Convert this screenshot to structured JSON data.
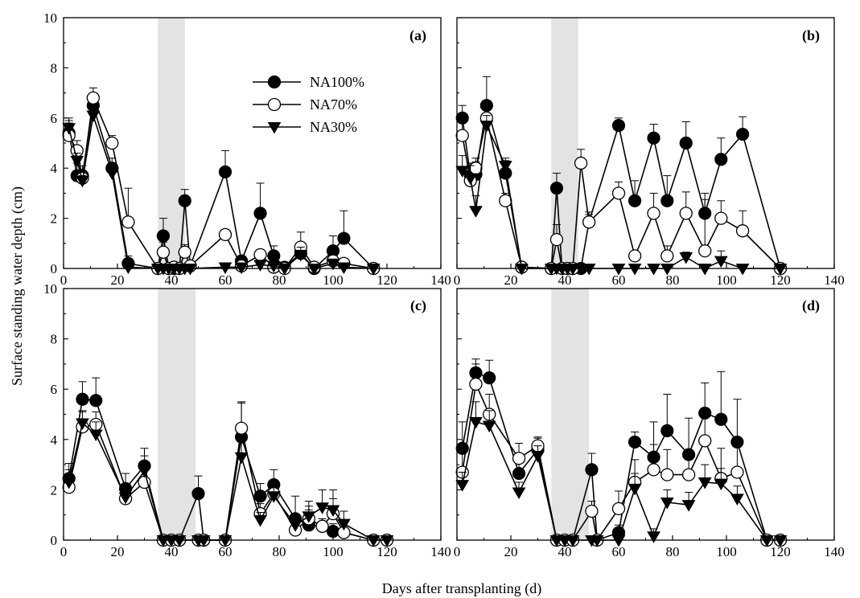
{
  "figure": {
    "xlabel": "Days after transplanting (d)",
    "ylabel": "Surface standing water depth (cm)",
    "legend_position": "upper-middle of panel (a)"
  },
  "legend": [
    {
      "series": "NA100%",
      "marker": "filled-circle"
    },
    {
      "series": "NA70%",
      "marker": "open-circle"
    },
    {
      "series": "NA30%",
      "marker": "filled-triangle-down"
    }
  ],
  "chart_data": [
    {
      "type": "line",
      "panel": "(a)",
      "xlim": [
        0,
        140
      ],
      "ylim": [
        0,
        10
      ],
      "xticks": [
        "0",
        "20",
        "40",
        "60",
        "80",
        "100",
        "120",
        "140"
      ],
      "yticks": [
        "0",
        "2",
        "4",
        "6",
        "8",
        "10"
      ],
      "grid": false,
      "shaded_x_range": [
        35,
        45
      ],
      "series": [
        {
          "name": "NA100%",
          "marker": "filled-circle",
          "x": [
            2,
            5,
            7,
            11,
            18,
            24,
            35,
            37,
            39,
            41,
            43,
            45,
            47,
            60,
            66,
            73,
            78,
            82,
            88,
            93,
            100,
            104,
            115
          ],
          "y": [
            5.4,
            3.7,
            3.7,
            6.5,
            4.0,
            0.2,
            0.0,
            1.3,
            0.0,
            0.0,
            0.0,
            2.7,
            0.1,
            3.85,
            0.3,
            2.2,
            0.5,
            0.05,
            0.6,
            0.0,
            0.7,
            1.2,
            0.0
          ],
          "err": [
            0.6,
            0.5,
            0.4,
            0.5,
            0.4,
            0.3,
            0.0,
            0.7,
            0.0,
            0.0,
            0.0,
            0.45,
            0.1,
            0.85,
            0.2,
            1.2,
            0.4,
            0.0,
            0.3,
            0.0,
            0.6,
            1.1,
            0.0
          ]
        },
        {
          "name": "NA70%",
          "marker": "open-circle",
          "x": [
            2,
            5,
            7,
            11,
            18,
            24,
            35,
            37,
            39,
            41,
            43,
            45,
            47,
            60,
            66,
            73,
            78,
            82,
            88,
            93,
            100,
            104,
            115
          ],
          "y": [
            5.3,
            4.7,
            3.6,
            6.8,
            5.0,
            1.85,
            0.0,
            0.65,
            0.0,
            0.05,
            0.0,
            0.65,
            0.1,
            1.35,
            0.1,
            0.55,
            0.05,
            0.0,
            0.85,
            0.05,
            0.3,
            0.2,
            0.0
          ],
          "err": [
            0.5,
            0.4,
            0.3,
            0.4,
            0.3,
            1.35,
            0.0,
            0.4,
            0.0,
            0.0,
            0.0,
            0.3,
            0.1,
            0.2,
            0.1,
            0.2,
            0.1,
            0.0,
            0.6,
            0.05,
            0.2,
            0.1,
            0.0
          ]
        },
        {
          "name": "NA30%",
          "marker": "filled-triangle-down",
          "x": [
            2,
            5,
            7,
            11,
            18,
            24,
            35,
            37,
            39,
            41,
            43,
            45,
            47,
            60,
            66,
            73,
            78,
            82,
            88,
            93,
            100,
            104,
            115
          ],
          "y": [
            5.6,
            4.3,
            3.5,
            6.1,
            3.8,
            0.05,
            0.0,
            0.0,
            0.0,
            0.0,
            0.0,
            0.0,
            0.0,
            0.05,
            0.05,
            0.15,
            0.1,
            0.0,
            0.55,
            0.0,
            0.2,
            0.05,
            0.0
          ],
          "err": [
            0.3,
            0.3,
            0.2,
            0.3,
            0.2,
            0.05,
            0.0,
            0.0,
            0.0,
            0.0,
            0.0,
            0.0,
            0.0,
            0.0,
            0.0,
            0.1,
            0.1,
            0.0,
            0.3,
            0.0,
            0.1,
            0.05,
            0.0
          ]
        }
      ]
    },
    {
      "type": "line",
      "panel": "(b)",
      "xlim": [
        0,
        140
      ],
      "ylim": [
        0,
        10
      ],
      "xticks": [
        "0",
        "20",
        "40",
        "60",
        "80",
        "100",
        "120",
        "140"
      ],
      "yticks": [],
      "grid": false,
      "shaded_x_range": [
        35,
        45
      ],
      "series": [
        {
          "name": "NA100%",
          "marker": "filled-circle",
          "x": [
            2,
            5,
            7,
            11,
            18,
            24,
            35,
            37,
            39,
            41,
            43,
            46,
            49,
            60,
            66,
            73,
            78,
            85,
            92,
            98,
            106,
            120
          ],
          "y": [
            6.0,
            3.7,
            3.75,
            6.5,
            3.8,
            0.05,
            0.0,
            3.2,
            0.0,
            0.0,
            0.0,
            0.0,
            1.85,
            5.7,
            2.7,
            5.2,
            2.7,
            5.0,
            2.2,
            4.35,
            5.35,
            0.0
          ],
          "err": [
            0.5,
            0.5,
            0.5,
            1.15,
            0.5,
            0.1,
            0.0,
            0.6,
            0.0,
            0.0,
            0.0,
            0.0,
            0.4,
            0.3,
            0.8,
            0.55,
            1.0,
            0.85,
            0.8,
            0.85,
            0.7,
            0.0
          ]
        },
        {
          "name": "NA70%",
          "marker": "open-circle",
          "x": [
            2,
            5,
            7,
            11,
            18,
            24,
            35,
            37,
            39,
            41,
            43,
            46,
            49,
            60,
            66,
            73,
            78,
            85,
            92,
            98,
            106,
            120
          ],
          "y": [
            5.3,
            3.5,
            4.0,
            6.0,
            2.7,
            0.05,
            0.0,
            1.15,
            0.0,
            0.0,
            0.0,
            4.2,
            1.85,
            3.0,
            0.5,
            2.2,
            0.5,
            2.2,
            0.7,
            2.0,
            1.5,
            0.0
          ],
          "err": [
            0.8,
            0.4,
            0.4,
            0.5,
            0.3,
            0.1,
            0.0,
            0.6,
            0.0,
            0.0,
            0.0,
            0.55,
            0.3,
            0.45,
            0.2,
            0.8,
            0.4,
            0.85,
            2.05,
            0.7,
            0.8,
            0.0
          ]
        },
        {
          "name": "NA30%",
          "marker": "filled-triangle-down",
          "x": [
            2,
            5,
            7,
            11,
            18,
            24,
            35,
            37,
            39,
            41,
            43,
            46,
            49,
            60,
            66,
            73,
            78,
            85,
            92,
            98,
            106,
            120
          ],
          "y": [
            3.9,
            3.6,
            2.3,
            5.7,
            4.1,
            0.0,
            0.0,
            0.0,
            0.0,
            0.0,
            0.0,
            0.0,
            0.0,
            0.0,
            0.0,
            0.0,
            0.0,
            0.45,
            0.0,
            0.3,
            0.0,
            0.0
          ],
          "err": [
            0.6,
            0.5,
            0.6,
            0.4,
            0.3,
            0.0,
            0.0,
            0.0,
            0.0,
            0.0,
            0.0,
            0.0,
            0.0,
            0.0,
            0.0,
            0.0,
            0.0,
            0.2,
            0.0,
            0.4,
            0.0,
            0.0
          ]
        }
      ]
    },
    {
      "type": "line",
      "panel": "(c)",
      "xlim": [
        0,
        140
      ],
      "ylim": [
        0,
        10
      ],
      "xticks": [
        "0",
        "20",
        "40",
        "60",
        "80",
        "100",
        "120",
        "140"
      ],
      "yticks": [
        "0",
        "2",
        "4",
        "6",
        "8",
        "10"
      ],
      "grid": false,
      "shaded_x_range": [
        35,
        49
      ],
      "series": [
        {
          "name": "NA100%",
          "marker": "filled-circle",
          "x": [
            2,
            7,
            12,
            23,
            30,
            37,
            40,
            43,
            50,
            52,
            60,
            66,
            73,
            78,
            86,
            91,
            96,
            100,
            104,
            115,
            120
          ],
          "y": [
            2.45,
            5.6,
            5.55,
            2.05,
            2.95,
            0.0,
            0.0,
            0.0,
            1.85,
            0.0,
            0.0,
            4.1,
            1.75,
            2.2,
            0.85,
            0.6,
            0.55,
            0.35,
            0.3,
            0.0,
            0.0
          ],
          "err": [
            0.6,
            0.7,
            0.9,
            0.6,
            0.7,
            0.0,
            0.0,
            0.0,
            0.7,
            0.0,
            0.0,
            1.4,
            0.5,
            0.6,
            0.9,
            0.6,
            0.2,
            0.3,
            0.2,
            0.0,
            0.0
          ]
        },
        {
          "name": "NA70%",
          "marker": "open-circle",
          "x": [
            2,
            7,
            12,
            23,
            30,
            37,
            40,
            43,
            50,
            52,
            60,
            66,
            73,
            78,
            86,
            91,
            96,
            100,
            104,
            115,
            120
          ],
          "y": [
            2.1,
            4.5,
            4.6,
            1.65,
            2.3,
            0.0,
            0.0,
            0.0,
            0.0,
            0.0,
            0.0,
            4.45,
            1.05,
            1.85,
            0.4,
            0.85,
            0.55,
            1.05,
            0.3,
            0.0,
            0.0
          ],
          "err": [
            0.5,
            0.6,
            0.5,
            0.4,
            0.5,
            0.0,
            0.0,
            0.0,
            0.0,
            0.0,
            0.0,
            1.0,
            0.4,
            0.4,
            0.2,
            0.5,
            0.3,
            0.6,
            0.2,
            0.0,
            0.0
          ]
        },
        {
          "name": "NA30%",
          "marker": "filled-triangle-down",
          "x": [
            2,
            7,
            12,
            23,
            30,
            37,
            40,
            43,
            50,
            52,
            60,
            66,
            73,
            78,
            86,
            91,
            96,
            100,
            104,
            115,
            120
          ],
          "y": [
            2.3,
            4.65,
            4.2,
            1.7,
            2.75,
            0.0,
            0.0,
            0.0,
            0.0,
            0.0,
            0.0,
            3.3,
            0.8,
            1.75,
            0.6,
            0.95,
            1.3,
            1.2,
            0.65,
            0.0,
            0.0
          ],
          "err": [
            0.5,
            0.5,
            0.5,
            0.4,
            0.6,
            0.0,
            0.0,
            0.0,
            0.0,
            0.0,
            0.0,
            0.7,
            0.3,
            0.5,
            0.4,
            0.6,
            0.7,
            0.8,
            0.5,
            0.0,
            0.0
          ]
        }
      ]
    },
    {
      "type": "line",
      "panel": "(d)",
      "xlim": [
        0,
        140
      ],
      "ylim": [
        0,
        10
      ],
      "xticks": [
        "0",
        "20",
        "40",
        "60",
        "80",
        "100",
        "120",
        "140"
      ],
      "yticks": [],
      "grid": false,
      "shaded_x_range": [
        35,
        49
      ],
      "series": [
        {
          "name": "NA100%",
          "marker": "filled-circle",
          "x": [
            2,
            7,
            12,
            23,
            30,
            37,
            40,
            43,
            50,
            52,
            60,
            66,
            73,
            78,
            86,
            92,
            98,
            104,
            115,
            120
          ],
          "y": [
            3.65,
            6.65,
            6.45,
            2.65,
            3.6,
            0.0,
            0.0,
            0.0,
            2.8,
            0.0,
            0.3,
            3.9,
            3.3,
            4.35,
            3.4,
            5.05,
            4.8,
            3.9,
            0.0,
            0.0
          ],
          "err": [
            1.05,
            0.55,
            0.7,
            0.7,
            0.5,
            0.0,
            0.0,
            0.0,
            0.65,
            0.0,
            0.3,
            0.4,
            1.4,
            1.45,
            1.45,
            1.2,
            1.9,
            1.7,
            0.0,
            0.0
          ]
        },
        {
          "name": "NA70%",
          "marker": "open-circle",
          "x": [
            2,
            7,
            12,
            23,
            30,
            37,
            40,
            43,
            50,
            52,
            60,
            66,
            73,
            78,
            86,
            92,
            98,
            104,
            115,
            120
          ],
          "y": [
            2.7,
            6.2,
            5.0,
            3.25,
            3.75,
            0.0,
            0.0,
            0.0,
            1.15,
            0.0,
            1.25,
            2.3,
            2.8,
            2.6,
            2.6,
            3.95,
            2.45,
            2.7,
            0.0,
            0.0
          ],
          "err": [
            0.8,
            0.8,
            0.8,
            0.6,
            0.3,
            0.0,
            0.0,
            0.0,
            0.4,
            0.0,
            0.7,
            0.9,
            1.0,
            1.0,
            0.8,
            1.3,
            1.2,
            1.0,
            0.0,
            0.0
          ]
        },
        {
          "name": "NA30%",
          "marker": "filled-triangle-down",
          "x": [
            2,
            7,
            12,
            23,
            30,
            37,
            40,
            43,
            50,
            52,
            60,
            66,
            73,
            78,
            86,
            92,
            98,
            104,
            115,
            120
          ],
          "y": [
            2.2,
            4.7,
            4.55,
            1.9,
            3.35,
            0.0,
            0.0,
            0.0,
            0.0,
            0.0,
            0.0,
            2.05,
            0.15,
            1.5,
            1.4,
            2.3,
            2.25,
            1.65,
            0.0,
            0.0
          ],
          "err": [
            0.5,
            0.8,
            0.6,
            0.4,
            0.4,
            0.0,
            0.0,
            0.0,
            0.0,
            0.0,
            0.0,
            0.6,
            0.3,
            0.5,
            0.5,
            0.7,
            0.6,
            0.5,
            0.0,
            0.0
          ]
        }
      ]
    }
  ]
}
